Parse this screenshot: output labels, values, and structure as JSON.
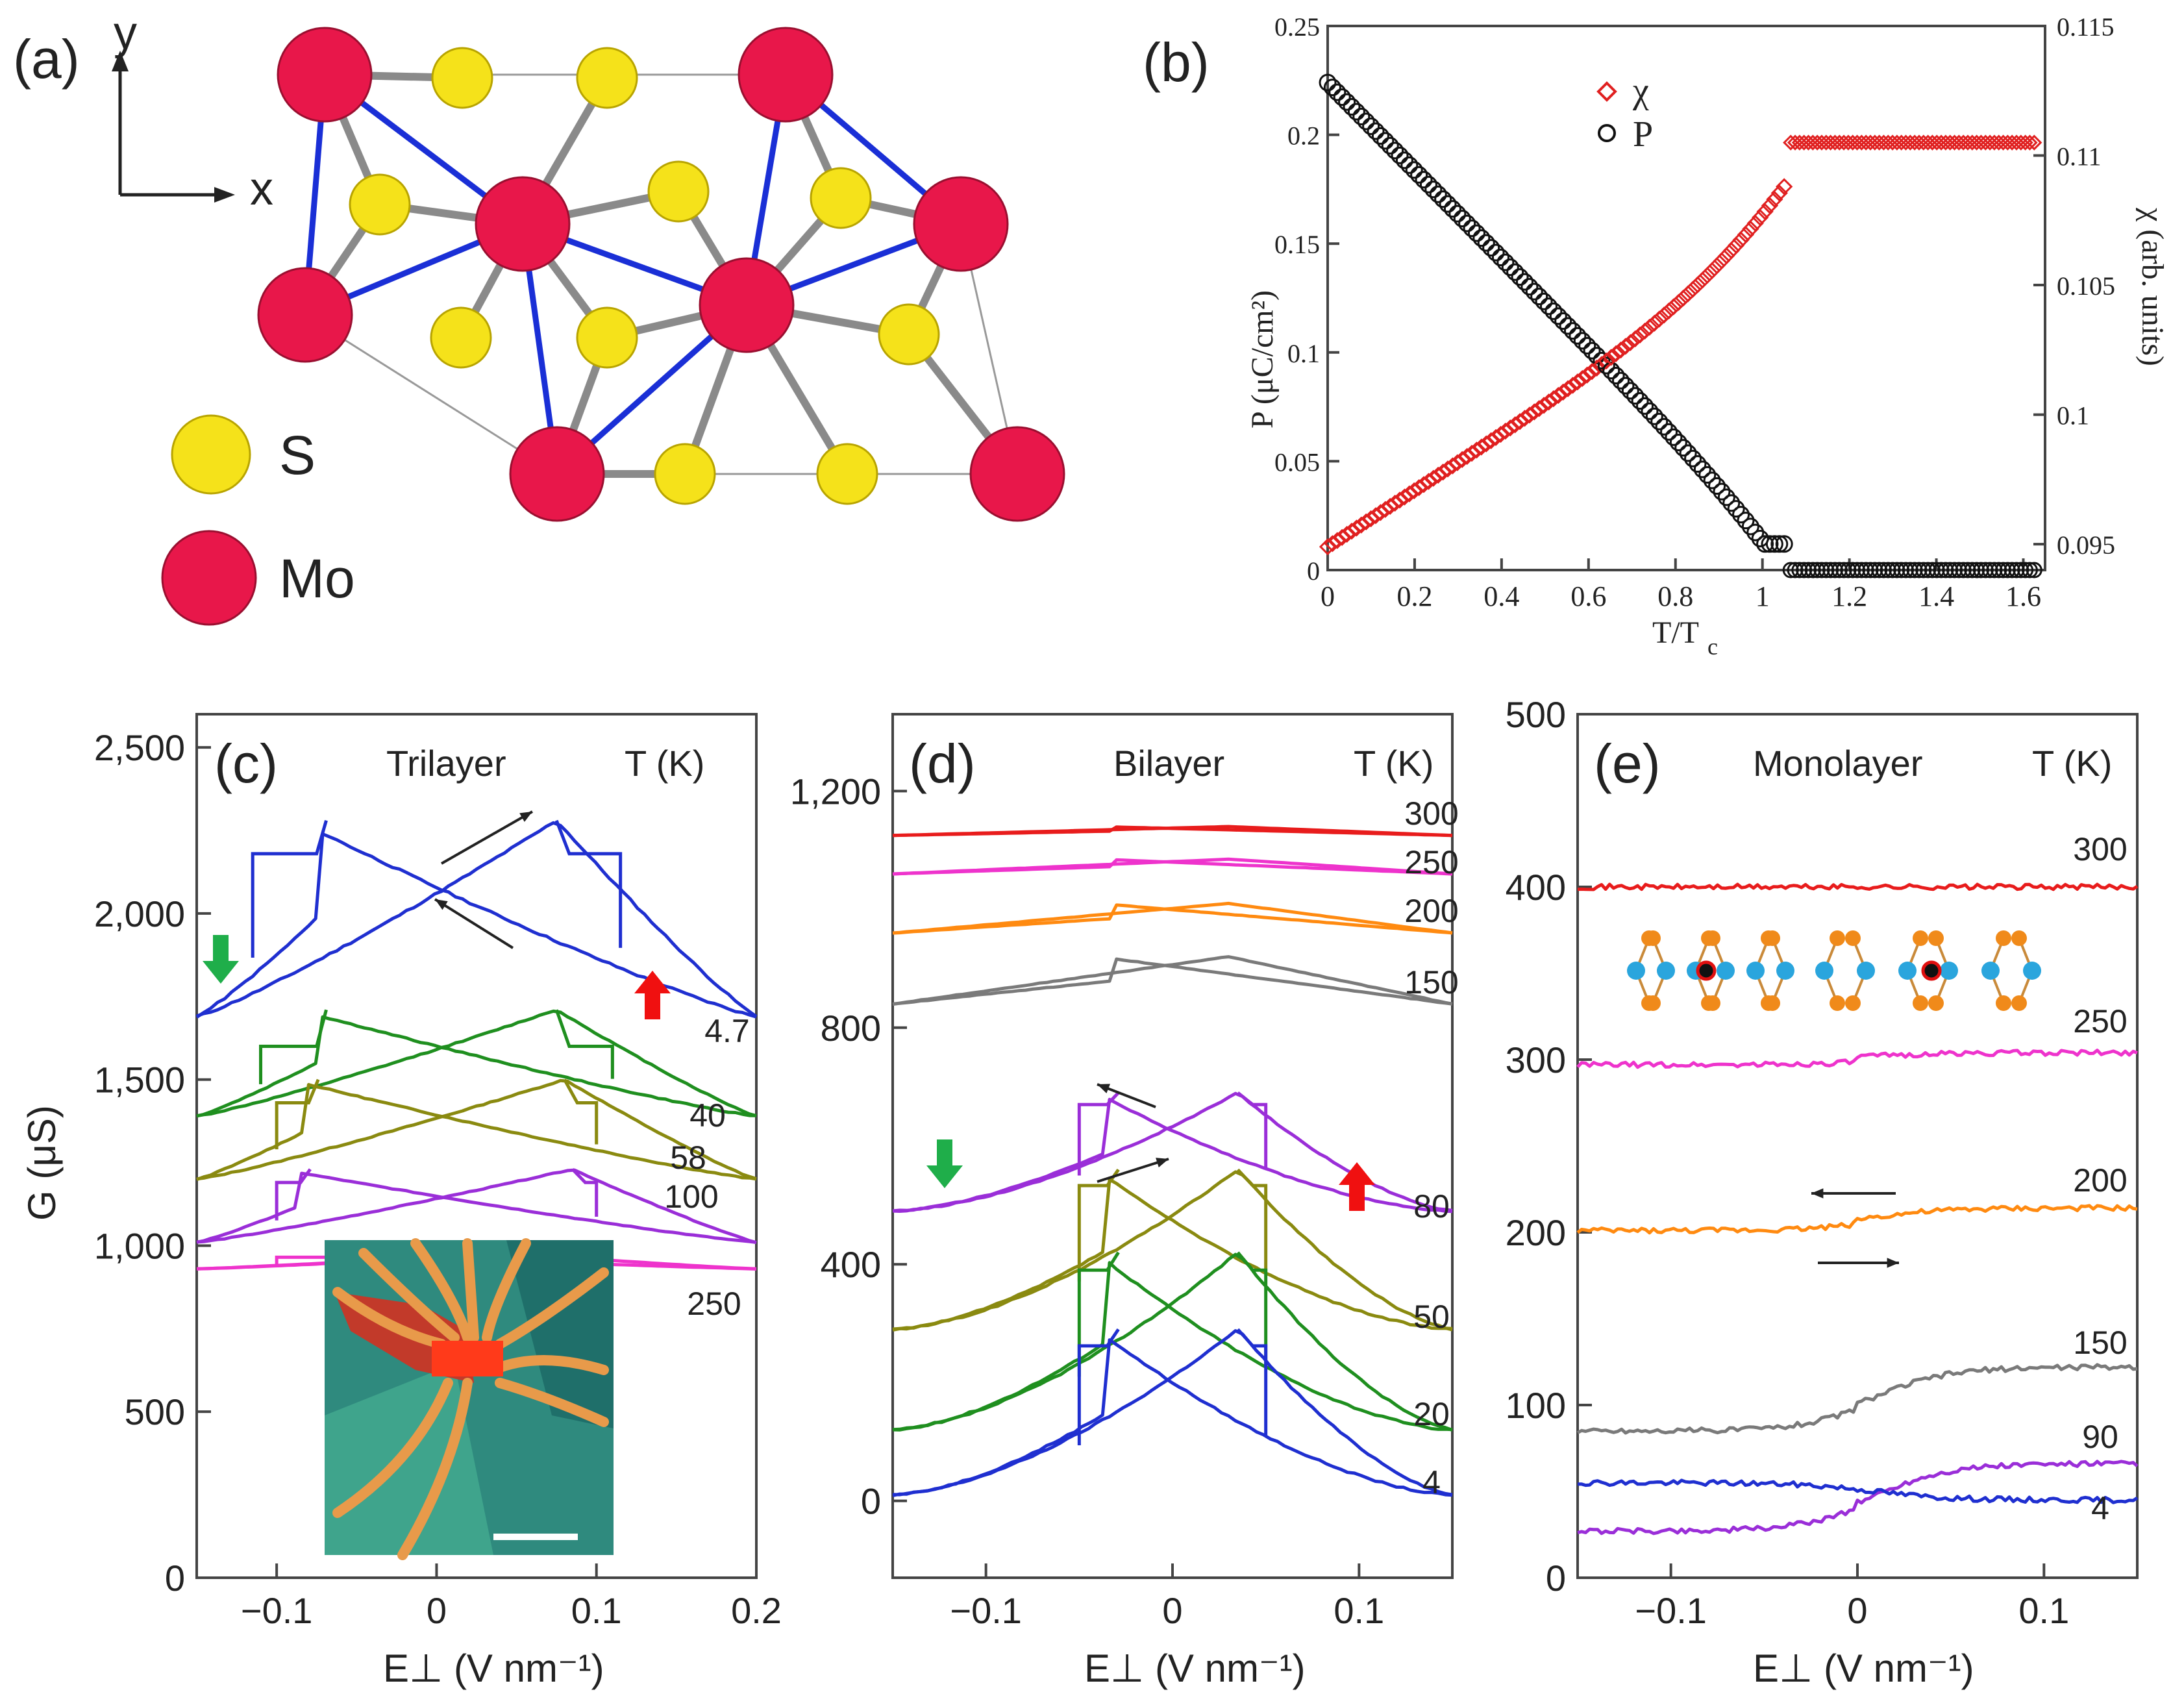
{
  "panel_a": {
    "label": "(a)",
    "axis_y": "y",
    "axis_x": "x",
    "legend": [
      {
        "label": "S",
        "color": "#f5e21a"
      },
      {
        "label": "Mo",
        "color": "#e8174a"
      }
    ],
    "bond_color": "#1a2fd6"
  },
  "colors": {
    "chi": "#e02020",
    "P": "#111111",
    "c4": "#1f2fd0",
    "green": "#1f8f1f",
    "olive": "#8a8a10",
    "purple": "#9a2ed8",
    "magenta": "#ee33cc",
    "red": "#e81c1c",
    "orange": "#ff8a10",
    "gray": "#7a7a7a",
    "arrow_down": "#1fae4a",
    "arrow_up": "#f01010"
  },
  "chart_data": [
    {
      "id": "b",
      "label": "(b)",
      "type": "scatter",
      "xlabel": "T/T",
      "xlabel_sub": "c",
      "ylabel": "P (μC/cm²)",
      "ylabel2": "χ (arb. units)",
      "xlim": [
        0,
        1.65
      ],
      "ylim": [
        0,
        0.25
      ],
      "y2lim": [
        0.094,
        0.115
      ],
      "x_ticks": [
        "0",
        "0.2",
        "0.4",
        "0.6",
        "0.8",
        "1",
        "1.2",
        "1.4",
        "1.6"
      ],
      "y_ticks": [
        "0",
        "0.05",
        "0.1",
        "0.15",
        "0.2",
        "0.25"
      ],
      "y2_ticks": [
        "0.095",
        "0.1",
        "0.105",
        "0.11",
        "0.115"
      ],
      "legend": [
        {
          "name": "χ",
          "marker": "diamond"
        },
        {
          "name": "P",
          "marker": "circle"
        }
      ],
      "series": [
        {
          "name": "P",
          "axis": "left",
          "Tc": 1.05,
          "P0": 0.224,
          "P_end": 0.012,
          "P_above": 0.0
        },
        {
          "name": "χ",
          "axis": "right",
          "chi0": 0.0949,
          "chi_end": 0.1088,
          "chi_above": 0.1105
        }
      ]
    },
    {
      "id": "c",
      "label": "(c)",
      "title": "Trilayer",
      "temp_header": "T (K)",
      "type": "line",
      "xlabel": "E⊥ (V nm⁻¹)",
      "ylabel": "G (μS)",
      "xlim": [
        -0.15,
        0.2
      ],
      "ylim": [
        0,
        2600
      ],
      "x_ticks": [
        "−0.1",
        "0",
        "0.1",
        "0.2"
      ],
      "y_ticks": [
        "0",
        "500",
        "1,000",
        "1,500",
        "2,000",
        "2,500"
      ],
      "series": [
        {
          "name": "4.7",
          "color_key": "c4",
          "base": 1690,
          "peak": 2280,
          "pk": 0.075,
          "jump": 2180,
          "jump_end": 0.115
        },
        {
          "name": "40",
          "color_key": "green",
          "base": 1390,
          "peak": 1710,
          "pk": 0.075,
          "jump": 1600,
          "jump_end": 0.11
        },
        {
          "name": "58",
          "color_key": "olive",
          "base": 1200,
          "peak": 1500,
          "pk": 0.08,
          "jump": 1430,
          "jump_end": 0.1
        },
        {
          "name": "100",
          "color_key": "purple",
          "base": 1010,
          "peak": 1230,
          "pk": 0.085,
          "jump": 1190,
          "jump_end": 0.1
        },
        {
          "name": "250",
          "color_key": "magenta",
          "base": 930,
          "peak": 975,
          "pk": 0.05,
          "jump": 965,
          "jump_end": 0.1
        }
      ],
      "inset": {
        "scale_bar": true
      }
    },
    {
      "id": "d",
      "label": "(d)",
      "title": "Bilayer",
      "temp_header": "T (K)",
      "type": "line",
      "xlabel": "E⊥ (V nm⁻¹)",
      "ylabel": "",
      "xlim": [
        -0.15,
        0.15
      ],
      "ylim": [
        -130,
        1330
      ],
      "x_ticks": [
        "−0.1",
        "0",
        "0.1"
      ],
      "y_ticks": [
        "0",
        "400",
        "800",
        "1,200"
      ],
      "series": [
        {
          "name": "300",
          "color_key": "red",
          "base": 1125,
          "peak": 1140
        },
        {
          "name": "250",
          "color_key": "magenta",
          "base": 1060,
          "peak": 1085
        },
        {
          "name": "200",
          "color_key": "orange",
          "base": 960,
          "peak": 1010
        },
        {
          "name": "150",
          "color_key": "gray",
          "base": 840,
          "peak": 920
        },
        {
          "name": "80",
          "color_key": "purple",
          "base": 490,
          "peak": 690
        },
        {
          "name": "50",
          "color_key": "olive",
          "base": 290,
          "peak": 560
        },
        {
          "name": "20",
          "color_key": "green",
          "base": 120,
          "peak": 420
        },
        {
          "name": "4",
          "color_key": "c4",
          "base": 10,
          "peak": 290
        }
      ]
    },
    {
      "id": "e",
      "label": "(e)",
      "title": "Monolayer",
      "temp_header": "T (K)",
      "type": "line",
      "xlabel": "E⊥ (V nm⁻¹)",
      "ylabel": "",
      "xlim": [
        -0.15,
        0.15
      ],
      "ylim": [
        0,
        500
      ],
      "x_ticks": [
        "−0.1",
        "0",
        "0.1"
      ],
      "y_ticks": [
        "0",
        "100",
        "200",
        "300",
        "400",
        "500"
      ],
      "series": [
        {
          "name": "300",
          "color_key": "red",
          "left": 400,
          "right": 400
        },
        {
          "name": "250",
          "color_key": "magenta",
          "left": 300,
          "right": 304
        },
        {
          "name": "200",
          "color_key": "orange",
          "left": 204,
          "right": 214
        },
        {
          "name": "150",
          "color_key": "gray",
          "left": 88,
          "right": 122
        },
        {
          "name": "90",
          "color_key": "purple",
          "left": 30,
          "right": 66
        },
        {
          "name": "4",
          "color_key": "c4",
          "left": 55,
          "right": 45
        }
      ]
    }
  ]
}
